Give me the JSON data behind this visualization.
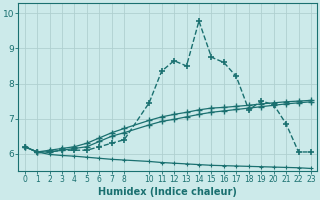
{
  "xlabel": "Humidex (Indice chaleur)",
  "bg_color": "#cceaea",
  "grid_color": "#b0d0d0",
  "line_color": "#1a7070",
  "xlim": [
    -0.5,
    23.5
  ],
  "ylim": [
    5.5,
    10.3
  ],
  "xticks": [
    0,
    1,
    2,
    3,
    4,
    5,
    6,
    7,
    8,
    10,
    11,
    12,
    13,
    14,
    15,
    16,
    17,
    18,
    19,
    20,
    21,
    22,
    23
  ],
  "yticks": [
    6,
    7,
    8,
    9,
    10
  ],
  "series": [
    {
      "x": [
        0,
        1,
        2,
        3,
        4,
        5,
        6,
        7,
        8,
        10,
        11,
        12,
        13,
        14,
        15,
        16,
        17,
        18,
        19,
        20,
        21,
        22,
        23
      ],
      "y": [
        6.2,
        6.05,
        6.05,
        6.1,
        6.1,
        6.1,
        6.2,
        6.3,
        6.4,
        7.45,
        8.35,
        8.65,
        8.5,
        9.78,
        8.75,
        8.6,
        8.2,
        7.25,
        7.5,
        7.4,
        6.85,
        6.05,
        6.05
      ],
      "marker": "+",
      "markersize": 5,
      "markeredgewidth": 1.2,
      "linewidth": 1.0,
      "linestyle": "--"
    },
    {
      "x": [
        0,
        1,
        2,
        3,
        4,
        5,
        6,
        7,
        8,
        10,
        11,
        12,
        13,
        14,
        15,
        16,
        17,
        18,
        19,
        20,
        21,
        22,
        23
      ],
      "y": [
        6.2,
        6.05,
        6.05,
        6.1,
        6.15,
        6.2,
        6.35,
        6.5,
        6.6,
        6.82,
        6.92,
        6.98,
        7.05,
        7.12,
        7.18,
        7.22,
        7.26,
        7.3,
        7.34,
        7.38,
        7.42,
        7.45,
        7.48
      ],
      "marker": "+",
      "markersize": 4,
      "markeredgewidth": 1.0,
      "linewidth": 0.9,
      "linestyle": "-"
    },
    {
      "x": [
        0,
        1,
        2,
        3,
        4,
        5,
        6,
        7,
        8,
        10,
        11,
        12,
        13,
        14,
        15,
        16,
        17,
        18,
        19,
        20,
        21,
        22,
        23
      ],
      "y": [
        6.2,
        6.05,
        6.1,
        6.15,
        6.2,
        6.3,
        6.45,
        6.6,
        6.72,
        6.95,
        7.05,
        7.12,
        7.18,
        7.25,
        7.3,
        7.32,
        7.35,
        7.38,
        7.42,
        7.45,
        7.48,
        7.5,
        7.52
      ],
      "marker": "+",
      "markersize": 4,
      "markeredgewidth": 1.0,
      "linewidth": 0.9,
      "linestyle": "-"
    },
    {
      "x": [
        0,
        1,
        2,
        3,
        4,
        5,
        6,
        7,
        8,
        10,
        11,
        12,
        13,
        14,
        15,
        16,
        17,
        18,
        19,
        20,
        21,
        22,
        23
      ],
      "y": [
        6.2,
        6.05,
        5.98,
        5.95,
        5.93,
        5.9,
        5.87,
        5.84,
        5.82,
        5.78,
        5.75,
        5.73,
        5.71,
        5.69,
        5.67,
        5.66,
        5.65,
        5.64,
        5.63,
        5.62,
        5.61,
        5.6,
        5.58
      ],
      "marker": "+",
      "markersize": 3,
      "markeredgewidth": 0.8,
      "linewidth": 0.9,
      "linestyle": "-"
    }
  ]
}
